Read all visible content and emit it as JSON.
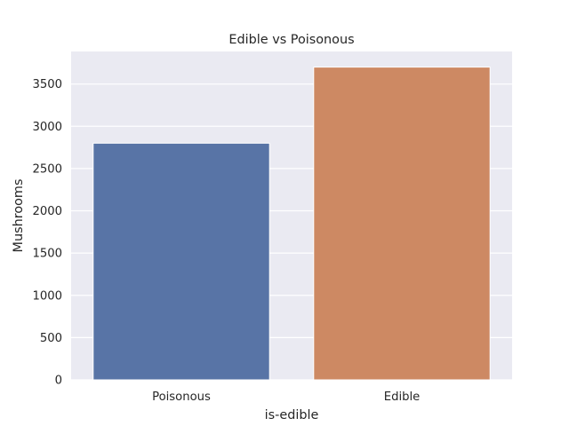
{
  "chart_data": {
    "type": "bar",
    "title": "Edible vs Poisonous",
    "xlabel": "is-edible",
    "ylabel": "Mushrooms",
    "categories": [
      "Poisonous",
      "Edible"
    ],
    "values": [
      2800,
      3700
    ],
    "colors": [
      "#5874a6",
      "#cd8963"
    ],
    "ylim": [
      0,
      3885
    ],
    "yticks": [
      0,
      500,
      1000,
      1500,
      2000,
      2500,
      3000,
      3500
    ],
    "grid": true,
    "background": "#eaeaf2",
    "legend": "none"
  }
}
